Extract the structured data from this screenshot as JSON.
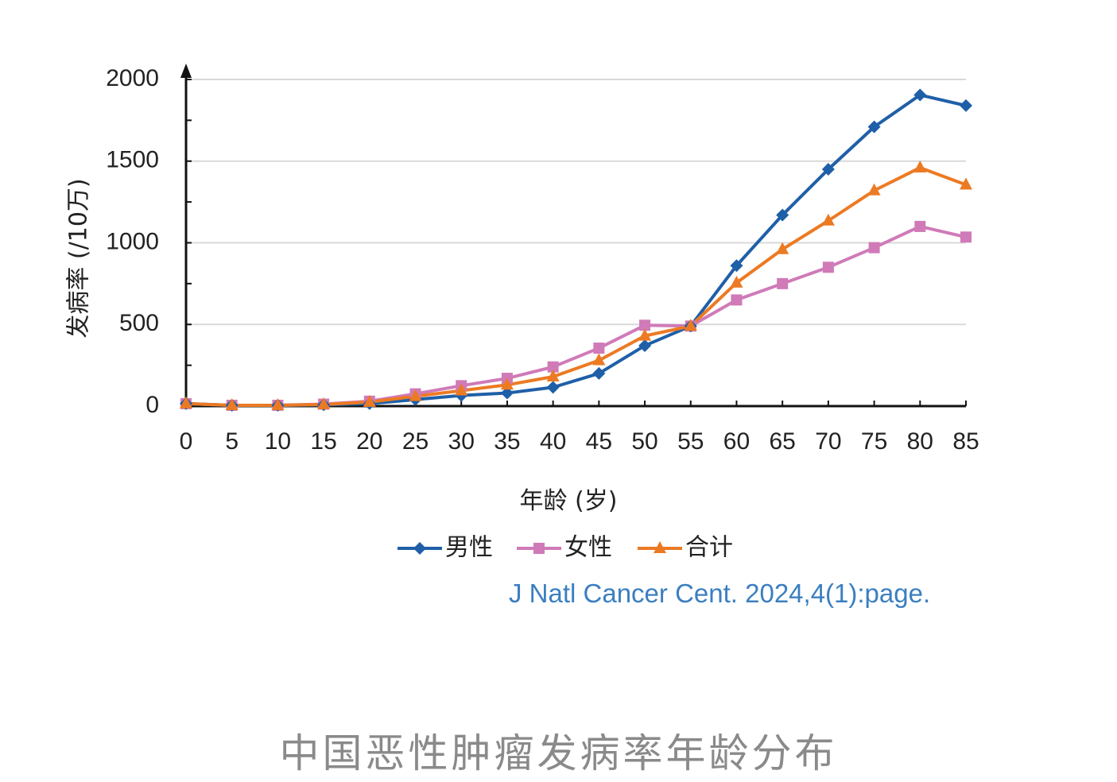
{
  "chart_data": {
    "type": "line",
    "x": [
      0,
      5,
      10,
      15,
      20,
      25,
      30,
      35,
      40,
      45,
      50,
      55,
      60,
      65,
      70,
      75,
      80,
      85
    ],
    "series": [
      {
        "name": "男性",
        "color": "#1f5fa8",
        "marker": "diamond",
        "values": [
          15,
          5,
          5,
          8,
          15,
          40,
          65,
          80,
          115,
          200,
          370,
          490,
          860,
          1170,
          1450,
          1710,
          1905,
          1840
        ]
      },
      {
        "name": "女性",
        "color": "#d07ab8",
        "marker": "square",
        "values": [
          15,
          5,
          5,
          12,
          30,
          75,
          125,
          170,
          240,
          355,
          495,
          490,
          650,
          750,
          850,
          970,
          1100,
          1035
        ]
      },
      {
        "name": "合计",
        "color": "#ec7a23",
        "marker": "triangle",
        "values": [
          15,
          5,
          5,
          10,
          25,
          60,
          95,
          130,
          180,
          280,
          430,
          490,
          755,
          960,
          1135,
          1320,
          1460,
          1355
        ]
      }
    ],
    "title": "",
    "xlabel": "年龄 (岁)",
    "ylabel": "发病率 (/10万)",
    "xlim": [
      0,
      85
    ],
    "ylim": [
      0,
      2000
    ],
    "yticks": [
      0,
      500,
      1000,
      1500,
      2000
    ],
    "grid": true,
    "legend": "bottom"
  },
  "source": "J Natl Cancer Cent. 2024,4(1):page.",
  "caption": "中国恶性肿瘤发病率年龄分布"
}
